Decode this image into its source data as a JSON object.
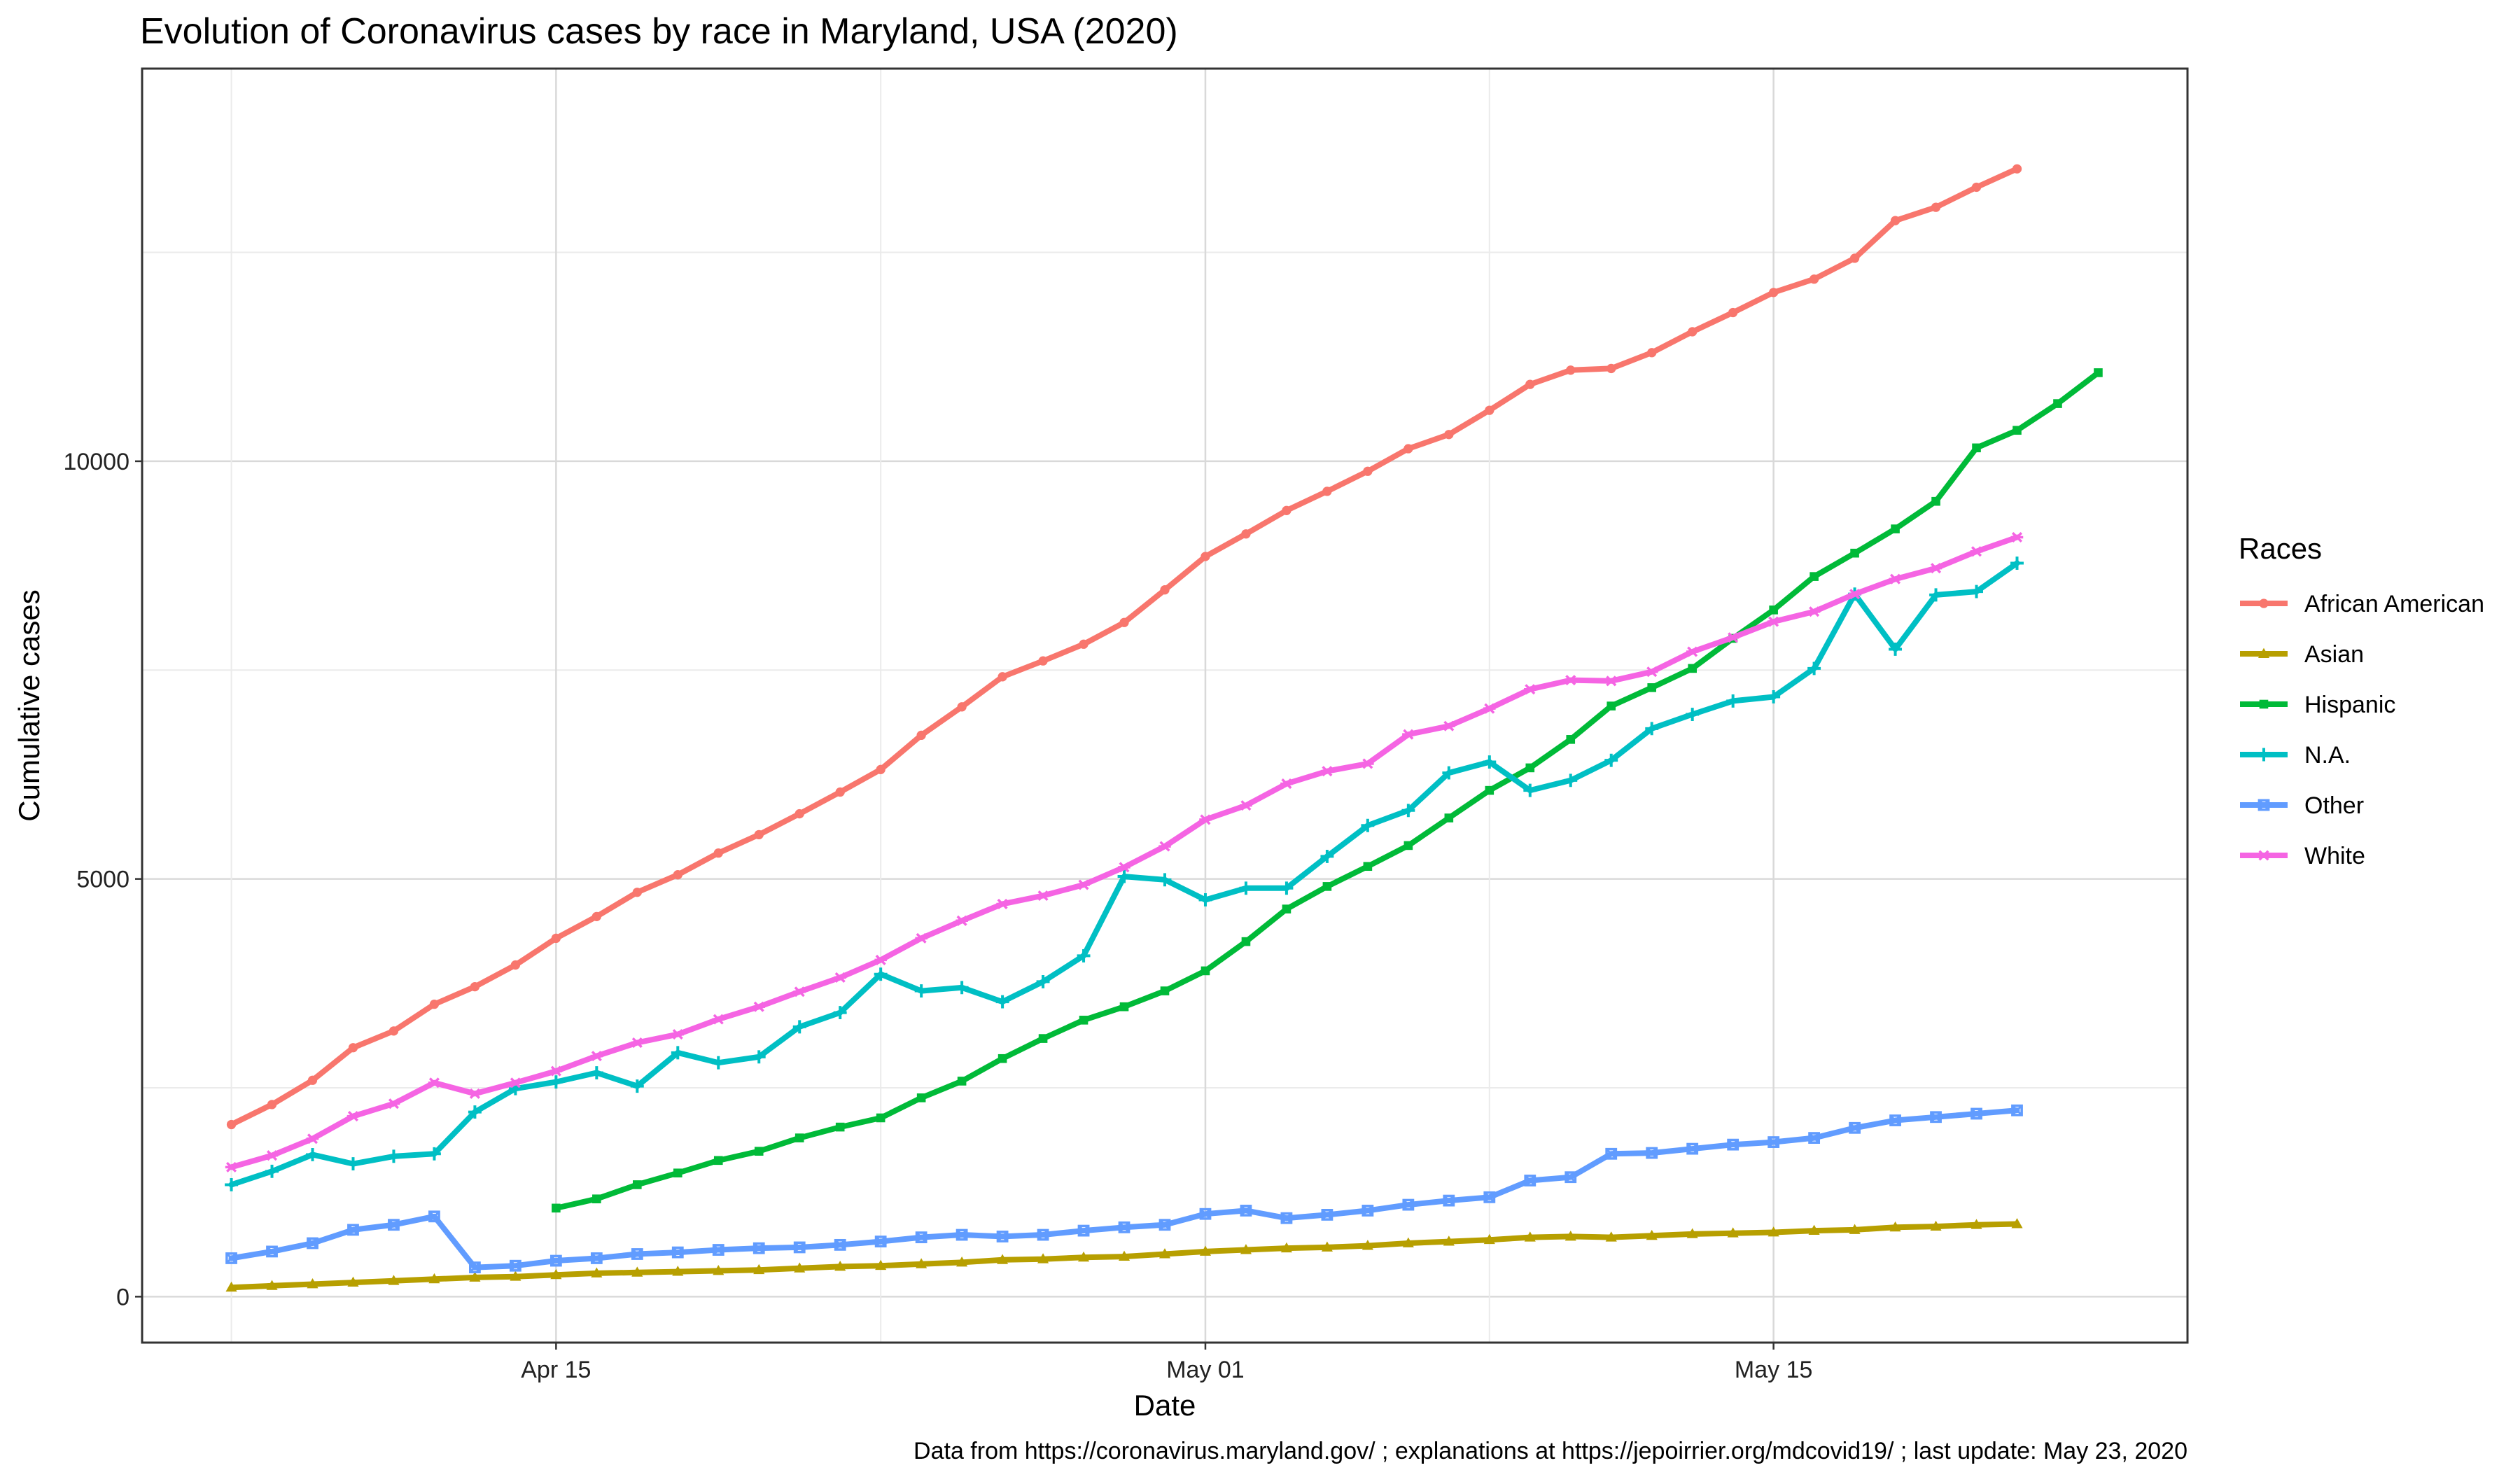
{
  "chart_data": {
    "type": "line",
    "title": "Evolution of Coronavirus cases by race in Maryland, USA (2020)",
    "xlabel": "Date",
    "ylabel": "Cumulative cases",
    "caption": "Data from https://coronavirus.maryland.gov/ ; explanations at https://jepoirrier.org/mdcovid19/ ; last update: May 23, 2020",
    "x_start": "2020-04-07",
    "x_ticks": [
      {
        "date": "2020-04-15",
        "label": "Apr 15"
      },
      {
        "date": "2020-05-01",
        "label": "May 01"
      },
      {
        "date": "2020-05-15",
        "label": "May 15"
      }
    ],
    "y_ticks": [
      0,
      5000,
      10000
    ],
    "ylim": [
      -550,
      14700
    ],
    "grid": true,
    "legend": {
      "title": "Races",
      "position": "right"
    },
    "series": [
      {
        "name": "African American",
        "color": "#F8766D",
        "marker": "circle",
        "start": "2020-04-07",
        "values": [
          2060,
          2300,
          2590,
          2980,
          3180,
          3500,
          3710,
          3970,
          4290,
          4550,
          4840,
          5050,
          5310,
          5530,
          5780,
          6040,
          6310,
          6720,
          7060,
          7420,
          7610,
          7810,
          8070,
          8460,
          8860,
          9130,
          9410,
          9640,
          9880,
          10150,
          10320,
          10610,
          10920,
          11090,
          11110,
          11300,
          11550,
          11780,
          12020,
          12180,
          12430,
          12880,
          13040,
          13280,
          13500
        ]
      },
      {
        "name": "Asian",
        "color": "#B79F00",
        "marker": "triangle",
        "start": "2020-04-07",
        "values": [
          110,
          130,
          150,
          170,
          190,
          210,
          230,
          240,
          260,
          280,
          290,
          300,
          310,
          320,
          340,
          360,
          370,
          390,
          410,
          440,
          450,
          470,
          480,
          510,
          540,
          560,
          580,
          590,
          610,
          640,
          660,
          680,
          710,
          720,
          710,
          730,
          750,
          760,
          770,
          790,
          800,
          830,
          840,
          860,
          870
        ]
      },
      {
        "name": "Hispanic",
        "color": "#00BA38",
        "marker": "square",
        "start": "2020-04-15",
        "values": [
          1060,
          1170,
          1340,
          1480,
          1630,
          1740,
          1900,
          2030,
          2140,
          2380,
          2580,
          2850,
          3090,
          3310,
          3470,
          3660,
          3900,
          4250,
          4640,
          4910,
          5150,
          5400,
          5730,
          6060,
          6330,
          6670,
          7070,
          7290,
          7520,
          7880,
          8220,
          8620,
          8900,
          9190,
          9520,
          10160,
          10370,
          10690,
          11060
        ]
      },
      {
        "name": "N.A.",
        "color": "#00BFC4",
        "marker": "plus",
        "start": "2020-04-07",
        "values": [
          1340,
          1500,
          1700,
          1590,
          1680,
          1710,
          2210,
          2490,
          2570,
          2680,
          2520,
          2920,
          2800,
          2870,
          3230,
          3400,
          3860,
          3660,
          3700,
          3530,
          3770,
          4080,
          5030,
          4990,
          4750,
          4890,
          4890,
          5270,
          5640,
          5820,
          6270,
          6400,
          6060,
          6180,
          6420,
          6800,
          6970,
          7130,
          7180,
          7520,
          8410,
          7750,
          8400,
          8440,
          8780
        ]
      },
      {
        "name": "Other",
        "color": "#619CFF",
        "marker": "square-x",
        "start": "2020-04-07",
        "values": [
          460,
          540,
          640,
          800,
          860,
          960,
          350,
          370,
          430,
          460,
          510,
          530,
          560,
          580,
          590,
          620,
          660,
          710,
          740,
          720,
          740,
          790,
          830,
          860,
          990,
          1030,
          940,
          980,
          1030,
          1100,
          1150,
          1190,
          1390,
          1430,
          1710,
          1720,
          1770,
          1820,
          1850,
          1900,
          2020,
          2110,
          2150,
          2190,
          2230
        ]
      },
      {
        "name": "White",
        "color": "#F564E3",
        "marker": "asterisk",
        "start": "2020-04-07",
        "values": [
          1550,
          1690,
          1890,
          2160,
          2310,
          2560,
          2430,
          2560,
          2700,
          2880,
          3040,
          3140,
          3320,
          3470,
          3650,
          3820,
          4030,
          4290,
          4500,
          4700,
          4800,
          4930,
          5140,
          5390,
          5710,
          5880,
          6140,
          6290,
          6380,
          6730,
          6830,
          7040,
          7270,
          7380,
          7370,
          7480,
          7720,
          7890,
          8080,
          8200,
          8410,
          8590,
          8720,
          8920,
          9090
        ]
      }
    ]
  }
}
